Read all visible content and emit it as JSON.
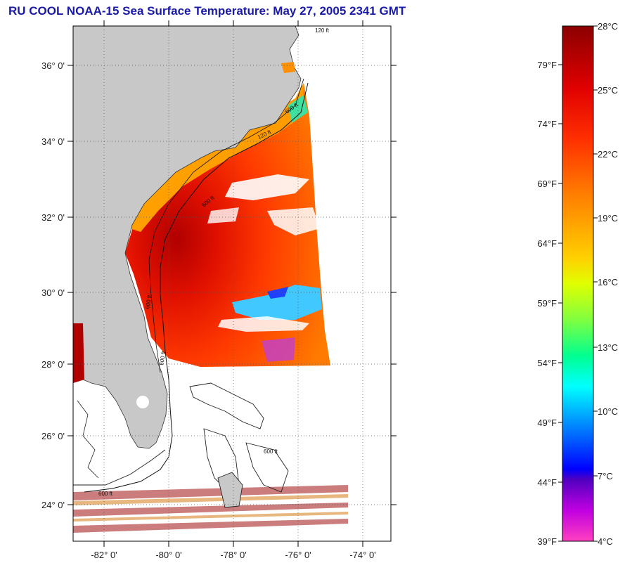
{
  "title": "RU COOL  NOAA-15  Sea Surface Temperature:  May 27, 2005 2341 GMT",
  "map": {
    "lat_labels": [
      "36° 0'",
      "34° 0'",
      "32° 0'",
      "30° 0'",
      "28° 0'",
      "26° 0'",
      "24° 0'"
    ],
    "lon_labels": [
      "-82° 0'",
      "-80° 0'",
      "-78° 0'",
      "-76° 0'",
      "-74° 0'"
    ],
    "contour_labels": [
      "120 ft",
      "600 ft",
      "600 ft",
      "600 ft",
      "600 ft",
      "120 ft",
      "600 ft",
      "600 ft"
    ]
  },
  "colorbar": {
    "celsius": [
      "28°C",
      "25°C",
      "22°C",
      "19°C",
      "16°C",
      "13°C",
      "10°C",
      "7°C",
      "4°C"
    ],
    "fahrenheit": [
      "79°F",
      "74°F",
      "69°F",
      "64°F",
      "59°F",
      "54°F",
      "49°F",
      "44°F",
      "39°F"
    ]
  },
  "colors": {
    "land": "#c8c8c8",
    "title_text": "#1a1aa8"
  }
}
